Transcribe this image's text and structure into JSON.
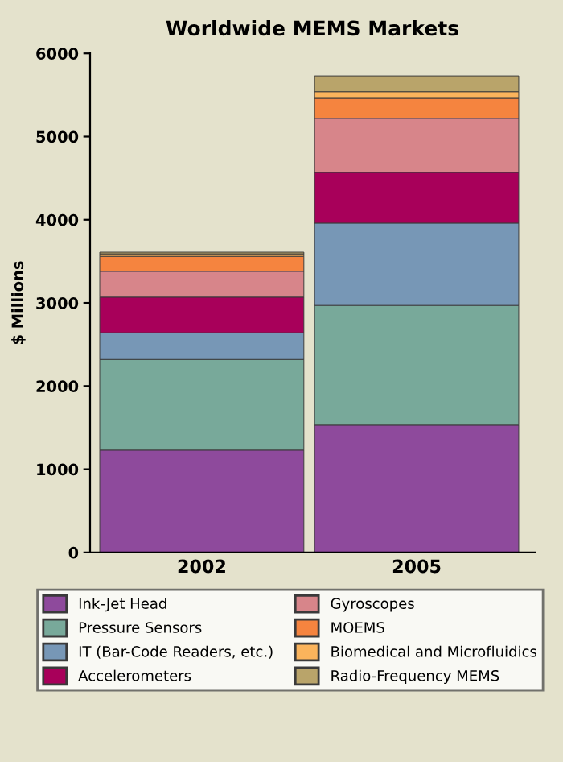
{
  "chart_data": {
    "type": "bar",
    "title": "Worldwide MEMS Markets",
    "ylabel": "$ Millions",
    "categories": [
      "2002",
      "2005"
    ],
    "stacked": true,
    "series": [
      {
        "name": "Ink-Jet Head",
        "color": "#8e4a9c",
        "values": [
          1230,
          1530
        ]
      },
      {
        "name": "Pressure Sensors",
        "color": "#78a99a",
        "values": [
          1090,
          1440
        ]
      },
      {
        "name": "IT (Bar-Code Readers, etc.)",
        "color": "#7797b6",
        "values": [
          320,
          990
        ]
      },
      {
        "name": "Accelerometers",
        "color": "#a8005a",
        "values": [
          430,
          610
        ]
      },
      {
        "name": "Gyroscopes",
        "color": "#d7858a",
        "values": [
          310,
          650
        ]
      },
      {
        "name": "MOEMS",
        "color": "#f5843f",
        "values": [
          180,
          240
        ]
      },
      {
        "name": "Biomedical and Microfluidics",
        "color": "#fbb45c",
        "values": [
          30,
          80
        ]
      },
      {
        "name": "Radio-Frequency MEMS",
        "color": "#b9a46a",
        "values": [
          20,
          190
        ]
      }
    ],
    "ylim": [
      0,
      6000
    ],
    "yticks": [
      0,
      1000,
      2000,
      3000,
      4000,
      5000,
      6000
    ],
    "grid": false,
    "legend": "bottom"
  }
}
